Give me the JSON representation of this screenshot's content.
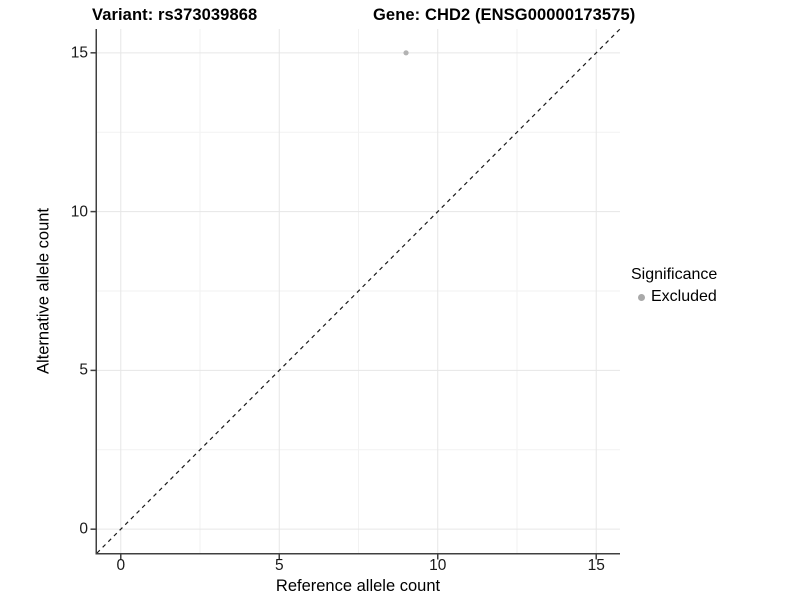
{
  "figure": {
    "title_left": "Variant: rs373039868",
    "title_right": "Gene: CHD2 (ENSG00000173575)"
  },
  "axes": {
    "x_label": "Reference allele count",
    "y_label": "Alternative allele count"
  },
  "legend": {
    "title": "Significance",
    "items": [
      {
        "label": "Excluded",
        "color": "#a9a9a9"
      }
    ]
  },
  "chart_data": {
    "type": "scatter",
    "title": "Variant: rs373039868 — Gene: CHD2 (ENSG00000173575)",
    "xlabel": "Reference allele count",
    "ylabel": "Alternative allele count",
    "xlim": [
      -0.75,
      15.75
    ],
    "ylim": [
      -0.75,
      15.75
    ],
    "x_ticks": [
      0,
      5,
      10,
      15
    ],
    "y_ticks": [
      0,
      5,
      10,
      15
    ],
    "minor_gridlines": [
      2.5,
      7.5,
      12.5
    ],
    "grid": "major and minor, light gray on white",
    "series": [
      {
        "name": "Excluded",
        "color": "#b3b3b3",
        "points": [
          {
            "x": 9,
            "y": 15
          }
        ]
      }
    ],
    "reference_line": {
      "type": "identity (y = x)",
      "style": "dashed",
      "color": "#1a1a1a",
      "from": [
        -0.75,
        -0.75
      ],
      "to": [
        15.75,
        15.75
      ]
    },
    "legend": {
      "title": "Significance",
      "entries": [
        "Excluded"
      ],
      "position": "right"
    }
  },
  "colors": {
    "background": "#ffffff",
    "major_grid": "#e6e6e6",
    "minor_grid": "#f2f2f2",
    "axis_line": "#404040",
    "tick_mark": "#404040",
    "point": "#b3b3b3",
    "dashed_line": "#1a1a1a"
  }
}
